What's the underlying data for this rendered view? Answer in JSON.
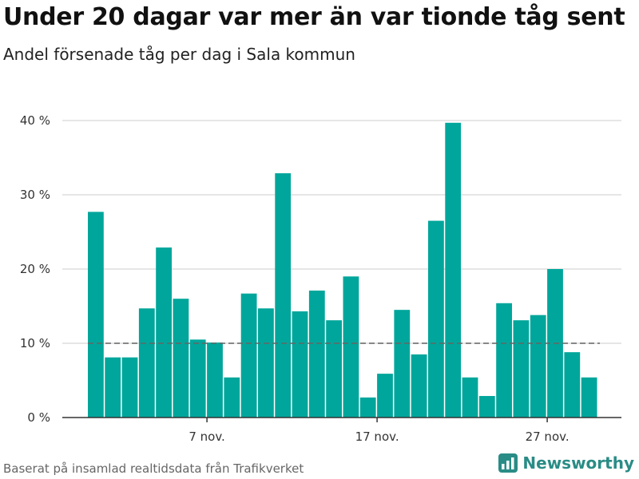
{
  "header": {
    "title": "Under 20 dagar var mer än var tionde tåg sent",
    "subtitle": "Andel försenade tåg per dag i Sala kommun"
  },
  "footer": {
    "source": "Baserat på insamlad realtidsdata från Trafikverket",
    "brand": "Newsworthy"
  },
  "colors": {
    "bar": "#00a69b",
    "reference_line": "#666666",
    "grid": "#dddddd",
    "axis": "#333333",
    "brand": "#2a8c86"
  },
  "chart_data": {
    "type": "bar",
    "x": [
      "1 nov.",
      "2 nov.",
      "3 nov.",
      "4 nov.",
      "5 nov.",
      "6 nov.",
      "7 nov.",
      "8 nov.",
      "9 nov.",
      "10 nov.",
      "11 nov.",
      "12 nov.",
      "13 nov.",
      "14 nov.",
      "15 nov.",
      "16 nov.",
      "17 nov.",
      "18 nov.",
      "19 nov.",
      "20 nov.",
      "21 nov.",
      "22 nov.",
      "23 nov.",
      "24 nov.",
      "25 nov.",
      "26 nov.",
      "27 nov.",
      "28 nov.",
      "29 nov.",
      "30 nov."
    ],
    "values": [
      27.7,
      8.1,
      8.1,
      14.7,
      22.9,
      16.0,
      10.5,
      10.1,
      5.4,
      16.7,
      14.7,
      32.9,
      14.3,
      17.1,
      13.1,
      19.0,
      2.7,
      5.9,
      14.5,
      8.5,
      26.5,
      39.7,
      5.4,
      2.9,
      15.4,
      13.1,
      13.8,
      20.0,
      8.8,
      5.4
    ],
    "ylim": [
      0,
      40
    ],
    "y_ticks": [
      {
        "value": 0,
        "label": "0 %"
      },
      {
        "value": 10,
        "label": "10 %"
      },
      {
        "value": 20,
        "label": "20 %"
      },
      {
        "value": 30,
        "label": "30 %"
      },
      {
        "value": 40,
        "label": "40 %"
      }
    ],
    "x_ticks": [
      {
        "index": 6,
        "label": "7 nov."
      },
      {
        "index": 16,
        "label": "17 nov."
      },
      {
        "index": 26,
        "label": "27 nov."
      }
    ],
    "reference_line": {
      "value": 10,
      "style": "dashed"
    },
    "grid": true
  }
}
